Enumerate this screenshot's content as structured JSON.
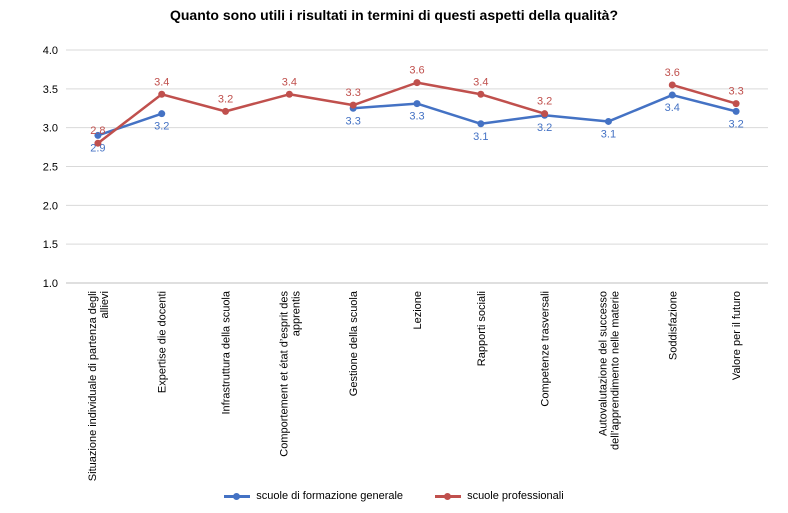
{
  "chart_data": {
    "type": "line",
    "title": "Quanto sono utili i risultati in termini di questi aspetti della qualità?",
    "categories": [
      [
        "Situazione individuale di partenza degli",
        "allievi"
      ],
      [
        "Expertise die docenti"
      ],
      [
        "Infrastruttura della scuola"
      ],
      [
        "Comportement et état d’esprit des",
        "apprentis"
      ],
      [
        "Gestione della scuola"
      ],
      [
        "Lezione"
      ],
      [
        "Rapporti sociali"
      ],
      [
        "Competenze trasversali"
      ],
      [
        "Autovalutazione del successo",
        "dell’apprendimento nelle materie"
      ],
      [
        "Soddisfazione"
      ],
      [
        "Valore per il futuro"
      ]
    ],
    "series": [
      {
        "name": "scuole di formazione generale",
        "color": "#4472c4",
        "values": [
          2.9,
          3.18,
          null,
          null,
          3.25,
          3.31,
          3.05,
          3.16,
          3.08,
          3.42,
          3.21
        ],
        "labels": [
          "2.9",
          "3.2",
          "",
          "",
          "3.3",
          "3.3",
          "3.1",
          "3.2",
          "3.1",
          "3.4",
          "3.2"
        ]
      },
      {
        "name": "scuole professionali",
        "color": "#c0504d",
        "values": [
          2.8,
          3.43,
          3.21,
          3.43,
          3.29,
          3.58,
          3.43,
          3.18,
          null,
          3.55,
          3.31
        ],
        "labels": [
          "2.8",
          "3.4",
          "3.2",
          "3.4",
          "3.3",
          "3.6",
          "3.4",
          "3.2",
          "",
          "3.6",
          "3.3"
        ]
      }
    ],
    "ylim": [
      1.0,
      4.0
    ],
    "yticks": [
      "1.0",
      "1.5",
      "2.0",
      "2.5",
      "3.0",
      "3.5",
      "4.0"
    ],
    "grid": true,
    "legend_position": "bottom"
  }
}
